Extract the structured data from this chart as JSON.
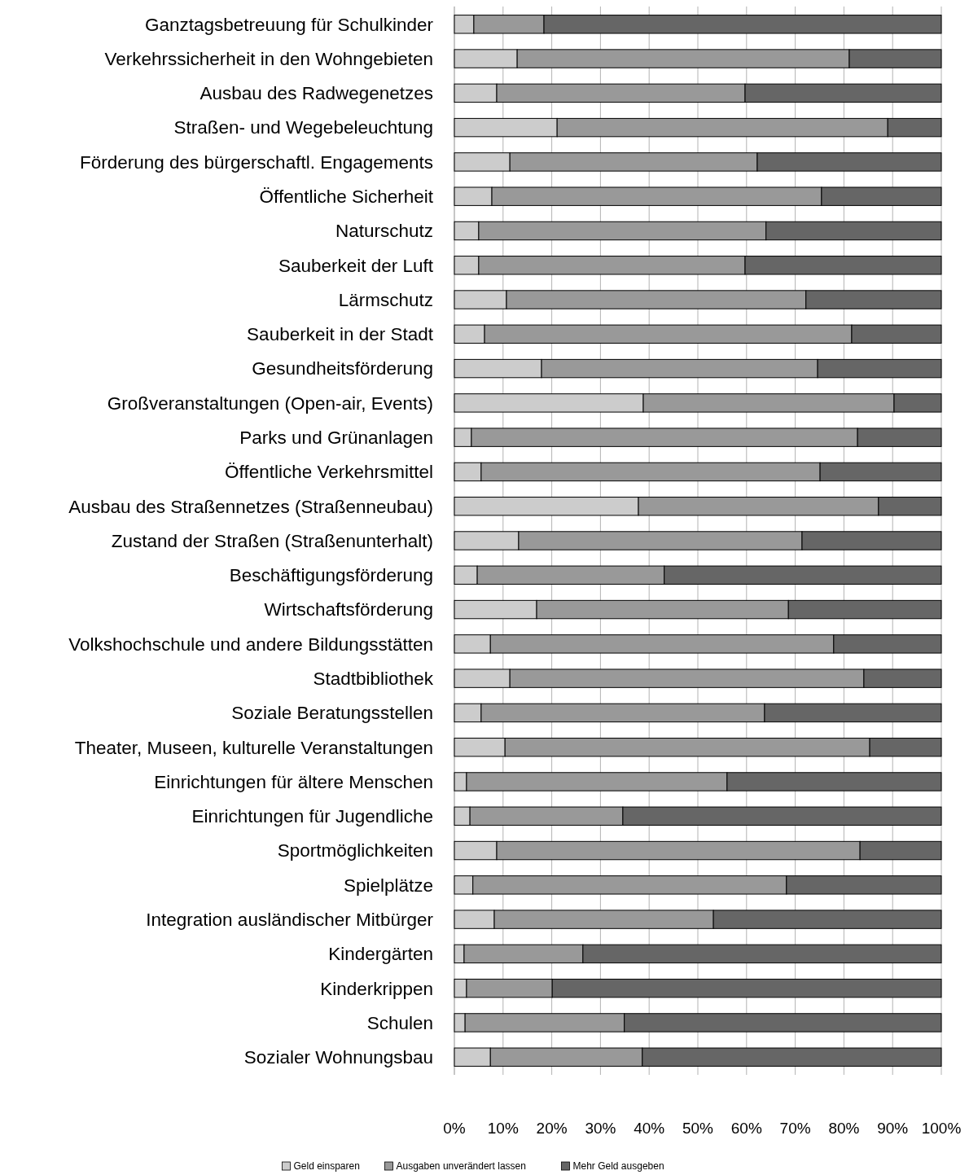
{
  "chart_data": {
    "type": "bar",
    "orientation": "horizontal",
    "stacked": true,
    "legend": "bottom",
    "grid": "x",
    "categories": [
      "Ganztagsbetreuung für Schulkinder",
      "Verkehrssicherheit in den Wohngebieten",
      "Ausbau des Radwegenetzes",
      "Straßen- und Wegebeleuchtung",
      "Förderung des bürgerschaftl. Engagements",
      "Öffentliche Sicherheit",
      "Naturschutz",
      "Sauberkeit der Luft",
      "Lärmschutz",
      "Sauberkeit in der Stadt",
      "Gesundheitsförderung",
      "Großveranstaltungen (Open-air, Events)",
      "Parks und Grünanlagen",
      "Öffentliche Verkehrsmittel",
      "Ausbau des Straßennetzes (Straßenneubau)",
      "Zustand der Straßen (Straßenunterhalt)",
      "Beschäftigungsförderung",
      "Wirtschaftsförderung",
      "Volkshochschule und andere Bildungsstätten",
      "Stadtbibliothek",
      "Soziale Beratungsstellen",
      "Theater, Museen, kulturelle Veranstaltungen",
      "Einrichtungen für ältere Menschen",
      "Einrichtungen für Jugendliche",
      "Sportmöglichkeiten",
      "Spielplätze",
      "Integration ausländischer Mitbürger",
      "Kindergärten",
      "Kinderkrippen",
      "Schulen",
      "Sozialer Wohnungsbau"
    ],
    "series": [
      {
        "name": "Geld einsparen",
        "color": "#cccccc",
        "values": [
          4.0,
          12.9,
          8.7,
          21.1,
          11.4,
          7.7,
          5.0,
          5.0,
          10.7,
          6.2,
          17.9,
          38.8,
          3.5,
          5.5,
          37.8,
          13.2,
          4.7,
          16.9,
          7.4,
          11.4,
          5.5,
          10.4,
          2.5,
          3.2,
          8.7,
          3.8,
          8.2,
          2.0,
          2.5,
          2.2,
          7.4
        ]
      },
      {
        "name": "Ausgaben unverändert lassen",
        "color": "#999999",
        "values": [
          14.4,
          68.2,
          51.0,
          67.9,
          50.8,
          67.7,
          59.0,
          54.7,
          61.5,
          75.4,
          56.7,
          51.5,
          79.3,
          69.6,
          49.3,
          58.2,
          38.4,
          51.7,
          70.5,
          72.7,
          58.2,
          74.9,
          53.5,
          31.4,
          74.6,
          64.4,
          45.0,
          24.4,
          17.6,
          32.7,
          31.2
        ]
      },
      {
        "name": "Mehr Geld ausgeben",
        "color": "#666666",
        "values": [
          81.6,
          18.9,
          40.3,
          11.0,
          37.8,
          24.6,
          36.0,
          40.3,
          27.8,
          18.4,
          25.4,
          9.7,
          17.2,
          24.9,
          12.9,
          28.6,
          56.9,
          31.4,
          22.1,
          15.9,
          36.3,
          14.7,
          44.0,
          65.4,
          16.7,
          31.8,
          46.8,
          73.6,
          79.9,
          65.1,
          61.4
        ]
      }
    ],
    "xlim": [
      0,
      100
    ],
    "xticks": [
      {
        "value": 0,
        "label": "0%"
      },
      {
        "value": 10,
        "label": "10%"
      },
      {
        "value": 20,
        "label": "20%"
      },
      {
        "value": 30,
        "label": "30%"
      },
      {
        "value": 40,
        "label": "40%"
      },
      {
        "value": 50,
        "label": "50%"
      },
      {
        "value": 60,
        "label": "60%"
      },
      {
        "value": 70,
        "label": "70%"
      },
      {
        "value": 80,
        "label": "80%"
      },
      {
        "value": 90,
        "label": "90%"
      },
      {
        "value": 100,
        "label": "100%"
      }
    ]
  }
}
